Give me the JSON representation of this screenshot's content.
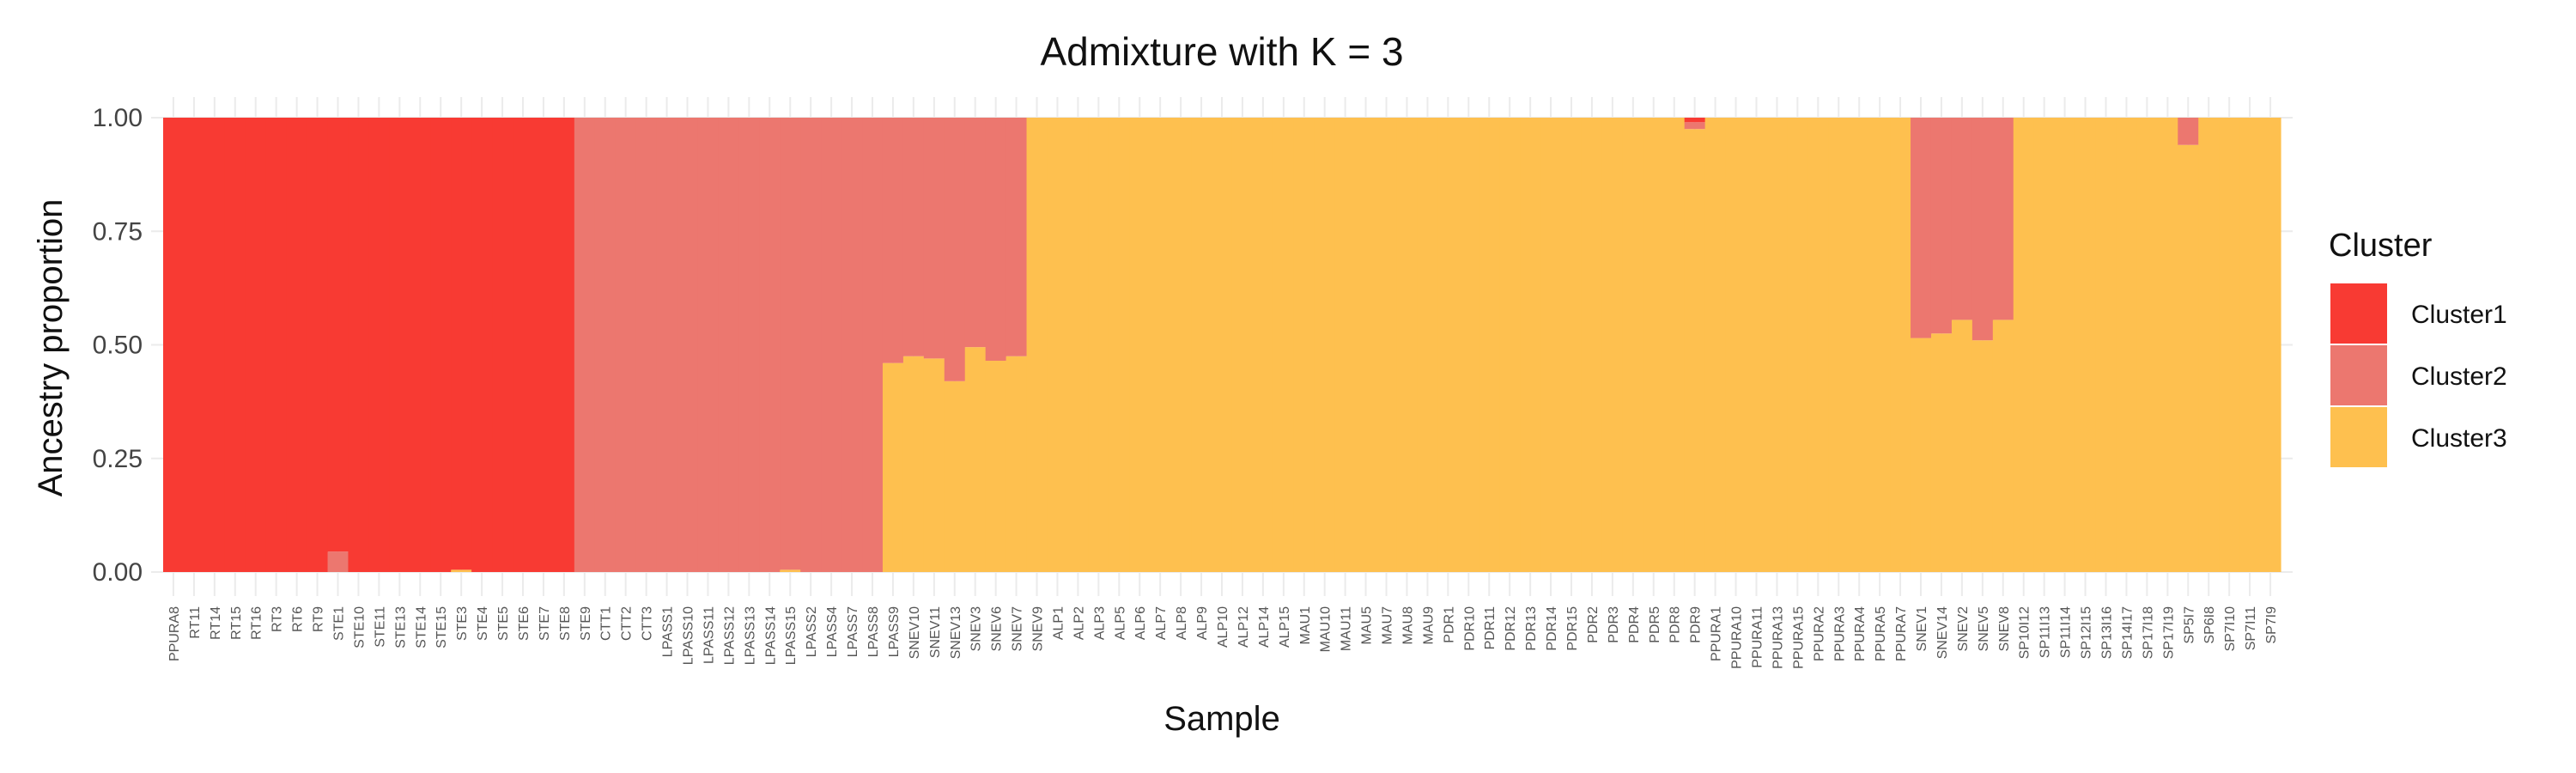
{
  "chart_data": {
    "type": "bar",
    "stacked": true,
    "title": "Admixture with K = 3",
    "xlabel": "Sample",
    "ylabel": "Ancestry proportion",
    "ylim": [
      0,
      1
    ],
    "yticks": [
      "0.00",
      "0.25",
      "0.50",
      "0.75",
      "1.00"
    ],
    "grid": true,
    "legend": {
      "title": "Cluster",
      "position": "right"
    },
    "colors": {
      "Cluster1": "#F83A33",
      "Cluster2": "#EC776F",
      "Cluster3": "#FEC04F"
    },
    "categories": [
      "PPURA8",
      "RT11",
      "RT14",
      "RT15",
      "RT16",
      "RT3",
      "RT6",
      "RT9",
      "STE1",
      "STE10",
      "STE11",
      "STE13",
      "STE14",
      "STE15",
      "STE3",
      "STE4",
      "STE5",
      "STE6",
      "STE7",
      "STE8",
      "STE9",
      "CTT1",
      "CTT2",
      "CTT3",
      "LPASS1",
      "LPASS10",
      "LPASS11",
      "LPASS12",
      "LPASS13",
      "LPASS14",
      "LPASS15",
      "LPASS2",
      "LPASS4",
      "LPASS7",
      "LPASS8",
      "LPASS9",
      "SNEV10",
      "SNEV11",
      "SNEV13",
      "SNEV3",
      "SNEV6",
      "SNEV7",
      "SNEV9",
      "ALP1",
      "ALP2",
      "ALP3",
      "ALP5",
      "ALP6",
      "ALP7",
      "ALP8",
      "ALP9",
      "ALP10",
      "ALP12",
      "ALP14",
      "ALP15",
      "MAU1",
      "MAU10",
      "MAU11",
      "MAU5",
      "MAU7",
      "MAU8",
      "MAU9",
      "PDR1",
      "PDR10",
      "PDR11",
      "PDR12",
      "PDR13",
      "PDR14",
      "PDR15",
      "PDR2",
      "PDR3",
      "PDR4",
      "PDR5",
      "PDR8",
      "PDR9",
      "PPURA1",
      "PPURA10",
      "PPURA11",
      "PPURA13",
      "PPURA15",
      "PPURA2",
      "PPURA3",
      "PPURA4",
      "PPURA5",
      "PPURA7",
      "SNEV1",
      "SNEV14",
      "SNEV2",
      "SNEV5",
      "SNEV8",
      "SP10I12",
      "SP11I13",
      "SP11I14",
      "SP12I15",
      "SP13I16",
      "SP14I17",
      "SP17I18",
      "SP17I19",
      "SP5I7",
      "SP6I8",
      "SP7I10",
      "SP7I11",
      "SP7I9"
    ],
    "series": [
      {
        "name": "Cluster1",
        "values": [
          1,
          1,
          1,
          1,
          1,
          1,
          1,
          1,
          0.955,
          1,
          1,
          1,
          1,
          1,
          0.995,
          1,
          1,
          1,
          1,
          1,
          0,
          0,
          0,
          0,
          0,
          0,
          0,
          0,
          0,
          0,
          0,
          0,
          0,
          0,
          0,
          0,
          0,
          0,
          0,
          0,
          0,
          0,
          0,
          0,
          0,
          0,
          0,
          0,
          0,
          0,
          0,
          0,
          0,
          0,
          0,
          0,
          0,
          0,
          0,
          0,
          0,
          0,
          0,
          0,
          0,
          0,
          0,
          0,
          0,
          0,
          0,
          0,
          0,
          0,
          0.01,
          0,
          0,
          0,
          0,
          0,
          0,
          0,
          0,
          0,
          0,
          0,
          0,
          0,
          0,
          0,
          0,
          0,
          0,
          0,
          0,
          0,
          0,
          0,
          0,
          0,
          0,
          0,
          0
        ]
      },
      {
        "name": "Cluster2",
        "values": [
          0,
          0,
          0,
          0,
          0,
          0,
          0,
          0,
          0.045,
          0,
          0,
          0,
          0,
          0,
          0,
          0,
          0,
          0,
          0,
          0,
          1,
          1,
          1,
          1,
          1,
          1,
          1,
          1,
          1,
          1,
          0.995,
          1,
          1,
          1,
          1,
          0.54,
          0.525,
          0.53,
          0.58,
          0.505,
          0.535,
          0.525,
          0,
          0,
          0,
          0,
          0,
          0,
          0,
          0,
          0,
          0,
          0,
          0,
          0,
          0,
          0,
          0,
          0,
          0,
          0,
          0,
          0,
          0,
          0,
          0,
          0,
          0,
          0,
          0,
          0,
          0,
          0,
          0,
          0.015,
          0,
          0,
          0,
          0,
          0,
          0,
          0,
          0,
          0,
          0,
          0.485,
          0.475,
          0.445,
          0.49,
          0.445,
          0,
          0,
          0,
          0,
          0,
          0,
          0,
          0,
          0.06,
          0,
          0,
          0,
          0
        ]
      },
      {
        "name": "Cluster3",
        "values": [
          0,
          0,
          0,
          0,
          0,
          0,
          0,
          0,
          0,
          0,
          0,
          0,
          0,
          0,
          0.005,
          0,
          0,
          0,
          0,
          0,
          0,
          0,
          0,
          0,
          0,
          0,
          0,
          0,
          0,
          0,
          0.005,
          0,
          0,
          0,
          0,
          0.46,
          0.475,
          0.47,
          0.42,
          0.495,
          0.465,
          0.475,
          1,
          1,
          1,
          1,
          1,
          1,
          1,
          1,
          1,
          1,
          1,
          1,
          1,
          1,
          1,
          1,
          1,
          1,
          1,
          1,
          1,
          1,
          1,
          1,
          1,
          1,
          1,
          1,
          1,
          1,
          1,
          1,
          0.975,
          1,
          1,
          1,
          1,
          1,
          1,
          1,
          1,
          1,
          1,
          0.515,
          0.525,
          0.555,
          0.51,
          0.555,
          1,
          1,
          1,
          1,
          1,
          1,
          1,
          1,
          0.94,
          1,
          1,
          1,
          1
        ]
      }
    ]
  }
}
